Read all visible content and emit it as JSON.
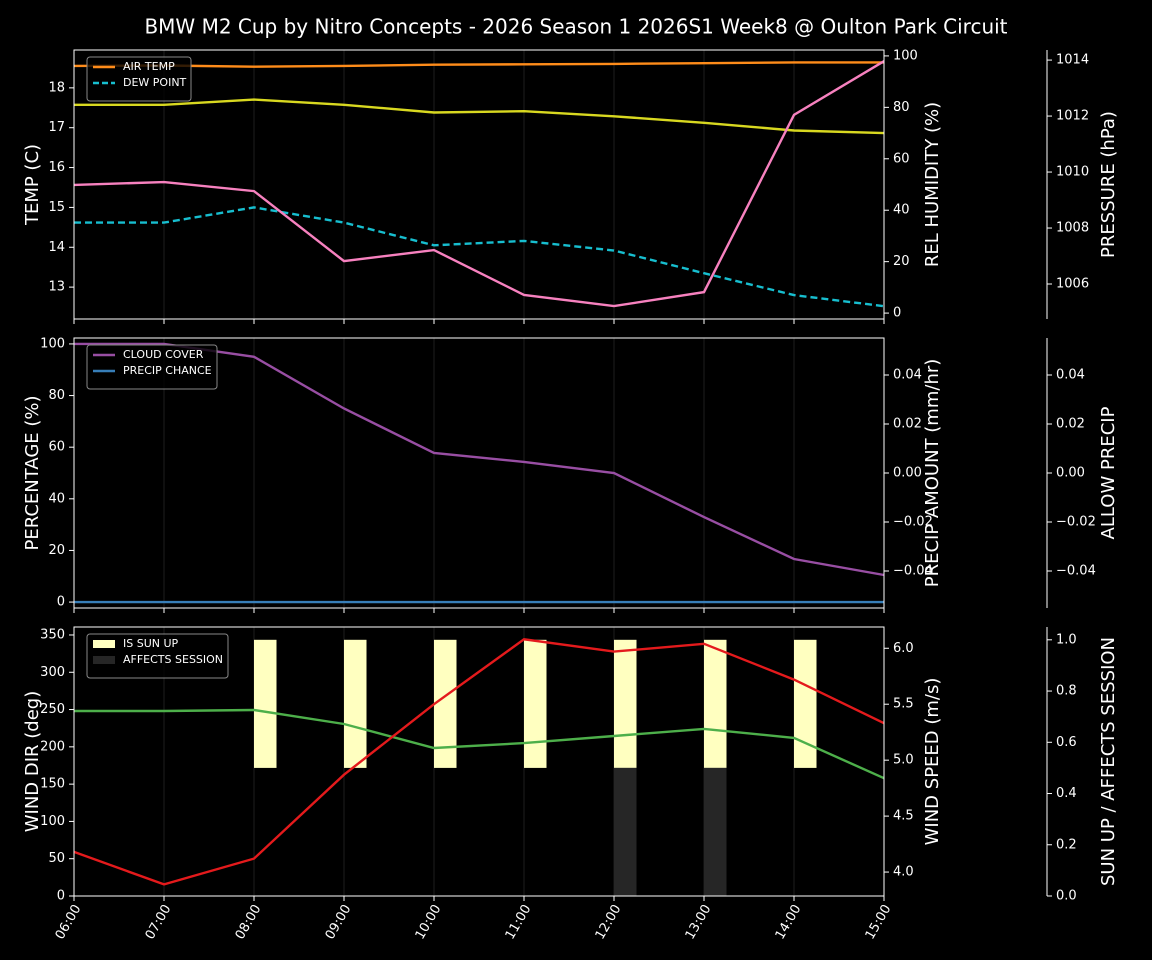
{
  "title": "BMW M2 Cup by Nitro Concepts - 2026 Season 1 2026S1 Week8 @ Oulton Park Circuit",
  "categories": [
    "06:00",
    "07:00",
    "08:00",
    "09:00",
    "10:00",
    "11:00",
    "12:00",
    "13:00",
    "14:00",
    "15:00"
  ],
  "chart_data": [
    {
      "type": "line",
      "legend": "upper left",
      "xgrid": true,
      "ylabel": "TEMP (C)",
      "ylabel_color": "#ffffff",
      "ylim": [
        12.2,
        18.95
      ],
      "yticks": [
        13,
        14,
        15,
        16,
        17,
        18
      ],
      "y2label": "REL HUMIDITY (%)",
      "y2label_color": "#d8d820",
      "y2lim": [
        -2.3,
        102.3
      ],
      "y2ticks": [
        0,
        20,
        40,
        60,
        80,
        100
      ],
      "y3label": "PRESSURE (hPa)",
      "y3label_color": "#f781bf",
      "y3lim": [
        1004.75,
        1014.36
      ],
      "y3ticks": [
        1006,
        1008,
        1010,
        1012,
        1014
      ],
      "series": [
        {
          "name": "AIR TEMP",
          "color": "#ff8c1a",
          "values": [
            18.55,
            18.56,
            18.53,
            18.55,
            18.58,
            18.59,
            18.6,
            18.62,
            18.64,
            18.64
          ]
        },
        {
          "name": "DEW POINT",
          "color": "#17becf",
          "dash": true,
          "values": [
            14.62,
            14.62,
            15.0,
            14.62,
            14.05,
            14.16,
            13.92,
            13.35,
            12.8,
            12.52
          ]
        },
        {
          "color": "#d8d820",
          "axis": "y2",
          "values": [
            81,
            81,
            83,
            81,
            78,
            78.5,
            76.5,
            74,
            71,
            70
          ]
        },
        {
          "color": "#f781bf",
          "axis": "y3",
          "values": [
            1009.54,
            1009.64,
            1009.32,
            1006.82,
            1007.21,
            1005.61,
            1005.21,
            1005.71,
            1012.04,
            1013.96
          ]
        }
      ]
    },
    {
      "type": "line",
      "legend": "upper left",
      "xgrid": true,
      "ylabel": "PERCENTAGE (%)",
      "ylabel_color": "#ffffff",
      "ylim": [
        -2.3,
        102.3
      ],
      "yticks": [
        0,
        20,
        40,
        60,
        80,
        100
      ],
      "y2label": "PRECIP AMOUNT (mm/hr)",
      "y2label_color": "#a0522d",
      "y2lim": [
        -0.0551,
        0.0551
      ],
      "y2ticks": [
        {
          "value": -0.04,
          "label": "−0.04"
        },
        {
          "value": -0.02,
          "label": "−0.02"
        },
        {
          "value": 0,
          "label": "0.00"
        },
        0.02,
        0.04
      ],
      "y3label": "ALLOW PRECIP",
      "y3label_color": "#ffffff",
      "y3lim": [
        -0.0551,
        0.0551
      ],
      "y3ticks": [
        {
          "value": -0.04,
          "label": "−0.04"
        },
        {
          "value": -0.02,
          "label": "−0.02"
        },
        {
          "value": 0,
          "label": "0.00"
        },
        0.02,
        0.04
      ],
      "series": [
        {
          "name": "CLOUD COVER",
          "color": "#984ea3",
          "values": [
            100,
            100,
            95,
            75,
            57.8,
            54.3,
            50,
            32.9,
            16.7,
            10.5
          ]
        },
        {
          "name": "PRECIP CHANCE",
          "color": "#377eb8",
          "values": [
            0,
            0,
            0,
            0,
            0,
            0,
            0,
            0,
            0,
            0
          ]
        }
      ]
    },
    {
      "type": "line",
      "legend": "upper left",
      "xgrid": true,
      "ylabel": "WIND DIR (deg)",
      "ylabel_color": "#4daf4a",
      "ylim": [
        0,
        360.7
      ],
      "yticks": [
        0,
        50,
        100,
        150,
        200,
        250,
        300,
        350
      ],
      "y2label": "WIND SPEED (m/s)",
      "y2label_color": "#e41a1c",
      "y2lim": [
        3.786,
        6.19
      ],
      "y2ticks": [
        {
          "value": 4,
          "label": "4.0"
        },
        4.5,
        {
          "value": 5,
          "label": "5.0"
        },
        5.5,
        {
          "value": 6,
          "label": "6.0"
        }
      ],
      "y3label": "SUN UP / AFFECTS SESSION",
      "y3label_color": "#ffffff",
      "y3lim": [
        0,
        1.05
      ],
      "y3ticks": [
        {
          "value": 0,
          "label": "0.0"
        },
        0.2,
        0.4,
        0.6,
        0.8,
        {
          "value": 1,
          "label": "1.0"
        }
      ],
      "series": [
        {
          "name": "IS SUN UP",
          "color": "#ffffc0",
          "type": "bar",
          "axis": "y3",
          "values": [
            0,
            0,
            1,
            1,
            1,
            1,
            1,
            1,
            1,
            0
          ]
        },
        {
          "name": "AFFECTS SESSION",
          "color": "#262626",
          "type": "bar",
          "axis": "y3",
          "values": [
            0,
            0,
            0,
            0,
            0,
            0,
            0.5,
            0.5,
            0,
            0
          ]
        },
        {
          "color": "#4daf4a",
          "values": [
            248,
            248,
            249.4,
            230.6,
            198.5,
            205,
            214.6,
            224,
            212,
            158
          ]
        },
        {
          "color": "#e41a1c",
          "axis": "y2",
          "values": [
            4.18,
            3.89,
            4.12,
            4.87,
            5.5,
            6.08,
            5.97,
            6.04,
            5.72,
            5.33
          ]
        }
      ]
    }
  ]
}
